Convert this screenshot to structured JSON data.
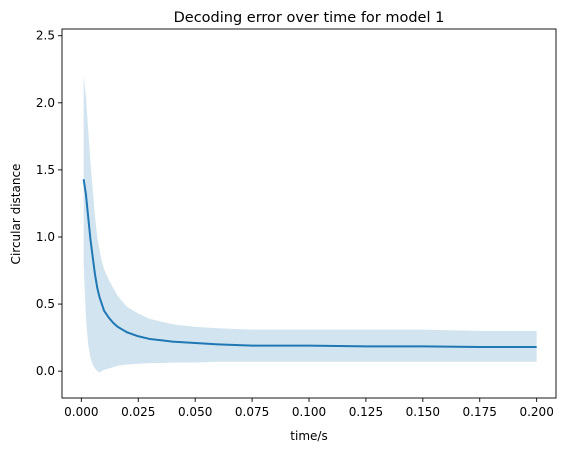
{
  "chart_data": {
    "type": "line",
    "title": "Decoding error over time for model 1",
    "xlabel": "time/s",
    "ylabel": "Circular distance",
    "xlim": [
      -0.0085,
      0.2085
    ],
    "ylim": [
      -0.2,
      2.55
    ],
    "x_ticks": [
      0.0,
      0.025,
      0.05,
      0.075,
      0.1,
      0.125,
      0.15,
      0.175,
      0.2
    ],
    "x_tick_labels": [
      "0.000",
      "0.025",
      "0.050",
      "0.075",
      "0.100",
      "0.125",
      "0.150",
      "0.175",
      "0.200"
    ],
    "y_ticks": [
      0.0,
      0.5,
      1.0,
      1.5,
      2.0,
      2.5
    ],
    "y_tick_labels": [
      "0.0",
      "0.5",
      "1.0",
      "1.5",
      "2.0",
      "2.5"
    ],
    "grid": false,
    "legend": "none",
    "series": [
      {
        "style": "line",
        "color": "#1f77b4",
        "band_color": "#1f77b4",
        "band_opacity": 0.2,
        "x": [
          0.001,
          0.002,
          0.003,
          0.004,
          0.005,
          0.006,
          0.007,
          0.008,
          0.009,
          0.01,
          0.012,
          0.014,
          0.016,
          0.018,
          0.02,
          0.025,
          0.03,
          0.035,
          0.04,
          0.05,
          0.06,
          0.075,
          0.1,
          0.125,
          0.15,
          0.175,
          0.2
        ],
        "y": [
          1.43,
          1.32,
          1.15,
          0.98,
          0.85,
          0.72,
          0.62,
          0.55,
          0.5,
          0.45,
          0.4,
          0.36,
          0.33,
          0.31,
          0.29,
          0.26,
          0.24,
          0.23,
          0.22,
          0.21,
          0.2,
          0.19,
          0.19,
          0.185,
          0.185,
          0.18,
          0.18
        ],
        "y_upper": [
          2.2,
          2.05,
          1.8,
          1.55,
          1.35,
          1.15,
          1.0,
          0.9,
          0.82,
          0.76,
          0.68,
          0.62,
          0.56,
          0.52,
          0.48,
          0.43,
          0.39,
          0.37,
          0.35,
          0.33,
          0.32,
          0.31,
          0.31,
          0.31,
          0.31,
          0.3,
          0.3
        ],
        "y_lower": [
          0.8,
          0.4,
          0.2,
          0.1,
          0.05,
          0.02,
          0.0,
          -0.01,
          0.0,
          0.01,
          0.02,
          0.03,
          0.04,
          0.045,
          0.05,
          0.055,
          0.06,
          0.06,
          0.065,
          0.065,
          0.07,
          0.07,
          0.07,
          0.07,
          0.07,
          0.07,
          0.07
        ]
      }
    ]
  }
}
